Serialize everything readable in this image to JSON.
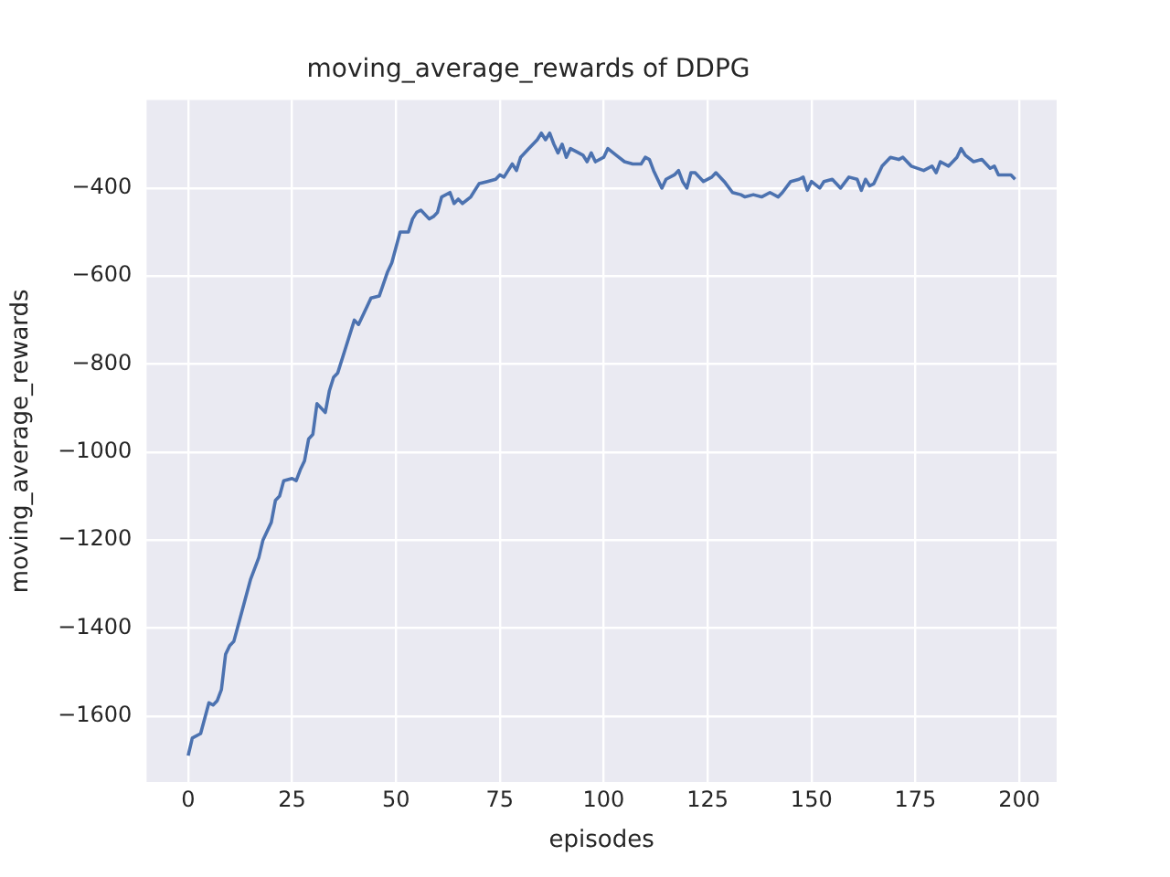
{
  "chart_data": {
    "type": "line",
    "title": "moving_average_rewards of DDPG",
    "xlabel": "episodes",
    "ylabel": "moving_average_rewards",
    "x": [
      0,
      1,
      3,
      5,
      6,
      7,
      8,
      9,
      10,
      11,
      13,
      15,
      17,
      18,
      20,
      21,
      22,
      23,
      25,
      26,
      27,
      28,
      29,
      30,
      31,
      33,
      34,
      35,
      36,
      38,
      40,
      41,
      43,
      44,
      46,
      48,
      49,
      51,
      53,
      54,
      55,
      56,
      58,
      59,
      60,
      61,
      63,
      64,
      65,
      66,
      68,
      70,
      72,
      74,
      75,
      76,
      77,
      78,
      79,
      80,
      82,
      84,
      85,
      86,
      87,
      88,
      89,
      90,
      91,
      92,
      94,
      95,
      96,
      97,
      98,
      100,
      101,
      103,
      105,
      107,
      109,
      110,
      111,
      112,
      114,
      115,
      117,
      118,
      119,
      120,
      121,
      122,
      124,
      126,
      127,
      129,
      131,
      133,
      134,
      136,
      138,
      140,
      142,
      143,
      145,
      147,
      148,
      149,
      150,
      152,
      153,
      155,
      157,
      159,
      161,
      162,
      163,
      164,
      165,
      167,
      169,
      171,
      172,
      174,
      177,
      179,
      180,
      181,
      183,
      185,
      186,
      187,
      189,
      191,
      193,
      194,
      195,
      198,
      199
    ],
    "series": [
      {
        "color": "#4c72b0",
        "values": [
          -1690,
          -1650,
          -1640,
          -1570,
          -1575,
          -1565,
          -1540,
          -1460,
          -1440,
          -1430,
          -1360,
          -1290,
          -1240,
          -1200,
          -1160,
          -1110,
          -1100,
          -1065,
          -1060,
          -1065,
          -1040,
          -1020,
          -970,
          -960,
          -890,
          -910,
          -860,
          -830,
          -820,
          -760,
          -700,
          -710,
          -670,
          -650,
          -645,
          -590,
          -570,
          -500,
          -500,
          -470,
          -455,
          -450,
          -470,
          -465,
          -455,
          -420,
          -410,
          -435,
          -425,
          -435,
          -420,
          -390,
          -385,
          -380,
          -370,
          -375,
          -360,
          -345,
          -360,
          -330,
          -310,
          -290,
          -275,
          -290,
          -275,
          -300,
          -320,
          -300,
          -330,
          -310,
          -320,
          -325,
          -340,
          -320,
          -340,
          -330,
          -310,
          -325,
          -340,
          -345,
          -345,
          -330,
          -335,
          -360,
          -400,
          -380,
          -370,
          -360,
          -385,
          -400,
          -365,
          -365,
          -385,
          -375,
          -365,
          -385,
          -410,
          -415,
          -420,
          -415,
          -420,
          -410,
          -420,
          -410,
          -385,
          -380,
          -375,
          -405,
          -385,
          -400,
          -385,
          -380,
          -400,
          -375,
          -380,
          -405,
          -380,
          -395,
          -390,
          -350,
          -330,
          -335,
          -330,
          -350,
          -360,
          -350,
          -365,
          -340,
          -350,
          -330,
          -310,
          -325,
          -340,
          -335,
          -355,
          -350,
          -370,
          -370,
          -380
        ]
      }
    ],
    "xlim": [
      -10,
      209
    ],
    "xticks": [
      0,
      25,
      50,
      75,
      100,
      125,
      150,
      175,
      200
    ],
    "ylim": [
      -1750,
      -200
    ],
    "yticks": [
      -1600,
      -1400,
      -1200,
      -1000,
      -800,
      -600,
      -400
    ],
    "grid": true,
    "legend": false,
    "marker": "none",
    "line_style": "solid"
  }
}
